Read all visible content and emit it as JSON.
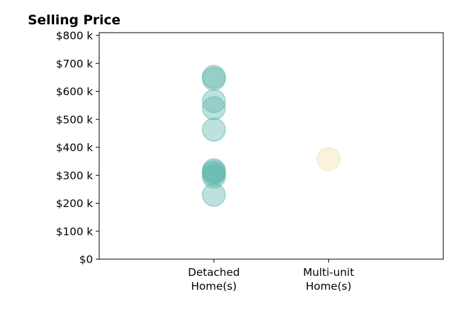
{
  "chart_data": {
    "type": "scatter",
    "title": "Selling Price",
    "xlabel": "",
    "ylabel": "",
    "categories": [
      {
        "lines": [
          "Detached",
          "Home(s)"
        ]
      },
      {
        "lines": [
          "Multi-unit",
          "Home(s)"
        ]
      }
    ],
    "xlim": [
      0,
      3
    ],
    "ylim": [
      0,
      810000
    ],
    "yticks": [
      {
        "value": 0,
        "label": "$0"
      },
      {
        "value": 100000,
        "label": "$100 k"
      },
      {
        "value": 200000,
        "label": "$200 k"
      },
      {
        "value": 300000,
        "label": "$300 k"
      },
      {
        "value": 400000,
        "label": "$400 k"
      },
      {
        "value": 500000,
        "label": "$500 k"
      },
      {
        "value": 600000,
        "label": "$600 k"
      },
      {
        "value": 700000,
        "label": "$700 k"
      },
      {
        "value": 800000,
        "label": "$800 k"
      }
    ],
    "grid": false,
    "legend": "none",
    "series": [
      {
        "x": 1,
        "color": "#5bb5ab",
        "values": [
          652000,
          645000,
          565000,
          540000,
          463000,
          318000,
          312000,
          305000,
          295000,
          230000
        ]
      },
      {
        "x": 2,
        "color": "#f3deaa",
        "values": [
          358000
        ]
      }
    ]
  }
}
